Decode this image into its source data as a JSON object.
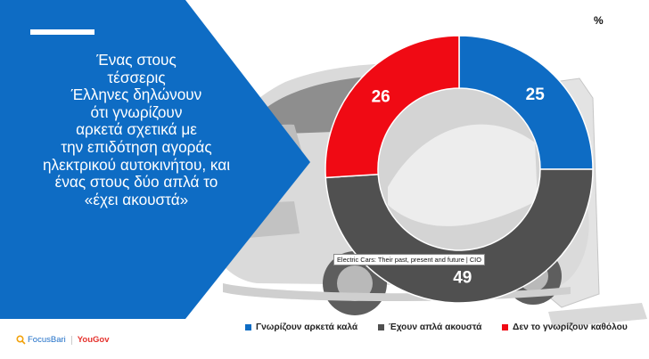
{
  "headline": "Ένας στους\nτέσσερις\nΈλληνες δηλώνουν\nότι γνωρίζουν\nαρκετά σχετικά με\nτην επιδότηση αγοράς\nηλεκτρικού αυτοκινήτου, και\nένας στους δύο απλά το\n«έχει ακουστά»",
  "unit_label": "%",
  "tooltip": "Electric Cars: Their past, present and future | CIO",
  "logos": {
    "focus": "FocusBari",
    "yougov": "YouGov"
  },
  "colors": {
    "panel": "#0e6cc4",
    "blue": "#0e6cc4",
    "grey": "#505050",
    "red": "#f00a14"
  },
  "chart_data": {
    "type": "pie",
    "subtype": "donut",
    "unit": "%",
    "legend_position": "bottom",
    "series": [
      {
        "name": "Γνωρίζουν αρκετά καλά",
        "value": 25,
        "color": "#0e6cc4"
      },
      {
        "name": "Έχουν απλά ακουστά",
        "value": 49,
        "color": "#505050"
      },
      {
        "name": "Δεν το γνωρίζουν καθόλου",
        "value": 26,
        "color": "#f00a14"
      }
    ]
  }
}
